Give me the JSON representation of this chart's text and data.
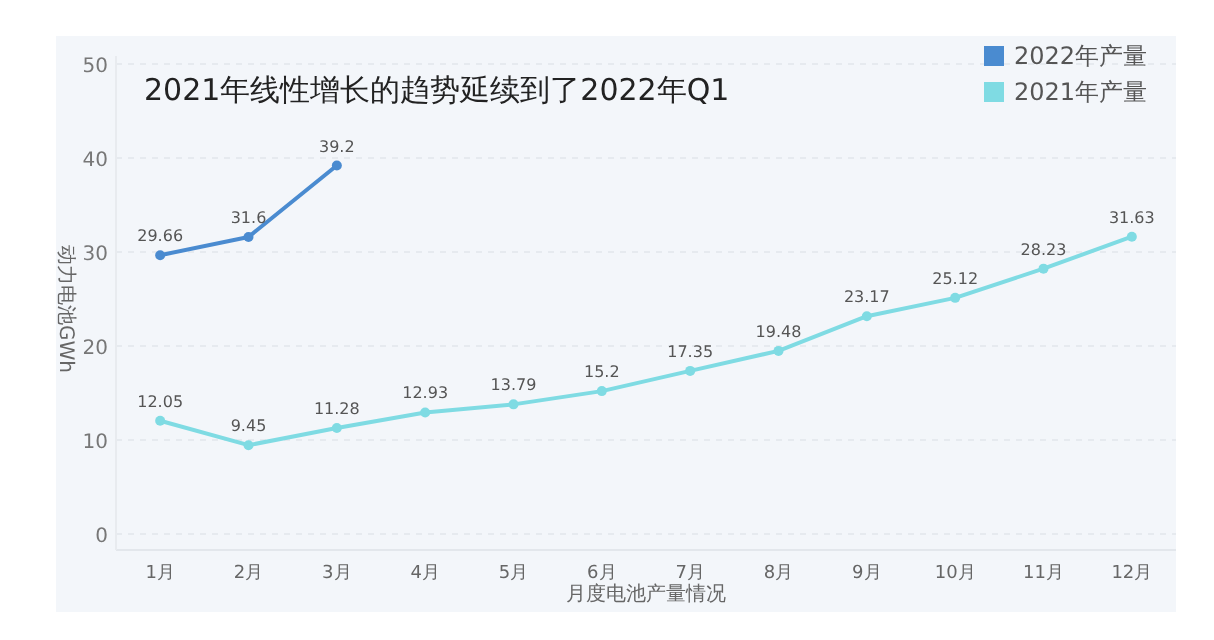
{
  "chart_data": {
    "type": "line",
    "title": "2021年线性增长的趋势延续到了2022年Q1",
    "xlabel": "月度电池产量情况",
    "ylabel": "动力电池GWh",
    "categories": [
      "1月",
      "2月",
      "3月",
      "4月",
      "5月",
      "6月",
      "7月",
      "8月",
      "9月",
      "10月",
      "11月",
      "12月"
    ],
    "series": [
      {
        "name": "2022年产量",
        "color": "#4a8bd0",
        "values": [
          29.66,
          31.6,
          39.2,
          null,
          null,
          null,
          null,
          null,
          null,
          null,
          null,
          null
        ]
      },
      {
        "name": "2021年产量",
        "color": "#7fdbe3",
        "values": [
          12.05,
          9.45,
          11.28,
          12.93,
          13.79,
          15.2,
          17.35,
          19.48,
          23.17,
          25.12,
          28.23,
          31.63
        ]
      }
    ],
    "ylim": [
      0,
      50
    ],
    "yticks": [
      0,
      10,
      20,
      30,
      40,
      50
    ],
    "grid": "y",
    "legend": "top right",
    "marker": "circle",
    "line_style": "solid",
    "data_labels": true
  }
}
